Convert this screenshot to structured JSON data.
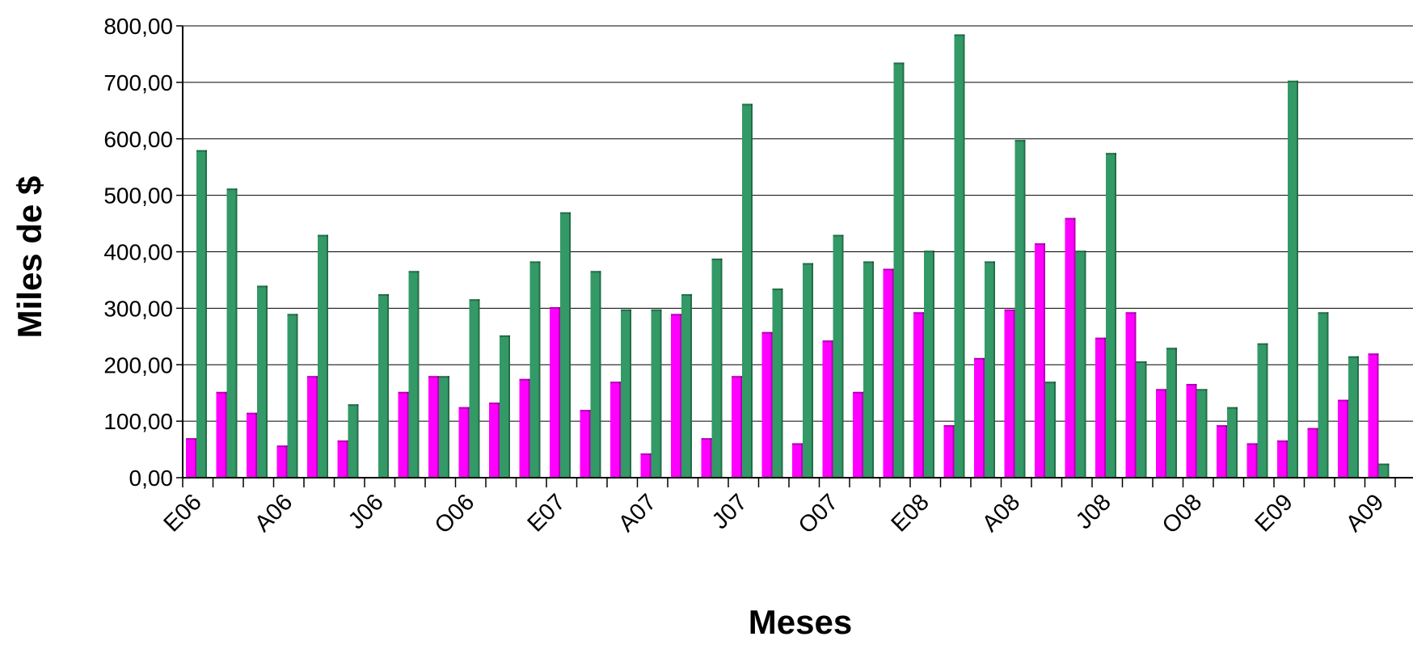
{
  "chart_data": {
    "type": "bar",
    "xlabel": "Meses",
    "ylabel": "Miles de $",
    "ylim": [
      0,
      800
    ],
    "yticks": [
      "0,00",
      "100,00",
      "200,00",
      "300,00",
      "400,00",
      "500,00",
      "600,00",
      "700,00",
      "800,00"
    ],
    "grid": true,
    "legend": "none",
    "x_tick_labels": [
      "E06",
      "A06",
      "J06",
      "O06",
      "E07",
      "A07",
      "J07",
      "O07",
      "E08",
      "A08",
      "J08",
      "O08",
      "E09",
      "A09"
    ],
    "month_count": 40,
    "series": [
      {
        "color": "#ff00ff",
        "values": [
          70,
          152,
          115,
          57,
          180,
          66,
          0,
          152,
          180,
          125,
          133,
          175,
          302,
          120,
          170,
          43,
          290,
          70,
          180,
          258,
          61,
          243,
          152,
          370,
          293,
          93,
          212,
          298,
          415,
          460,
          248,
          293,
          157,
          166,
          93,
          61,
          66,
          88,
          138,
          220
        ]
      },
      {
        "color": "#339966",
        "values": [
          580,
          512,
          340,
          290,
          430,
          130,
          325,
          366,
          180,
          316,
          252,
          383,
          470,
          366,
          298,
          298,
          325,
          388,
          662,
          335,
          380,
          430,
          383,
          735,
          402,
          785,
          383,
          598,
          170,
          402,
          575,
          206,
          230,
          157,
          125,
          238,
          703,
          293,
          215,
          25
        ]
      }
    ]
  }
}
